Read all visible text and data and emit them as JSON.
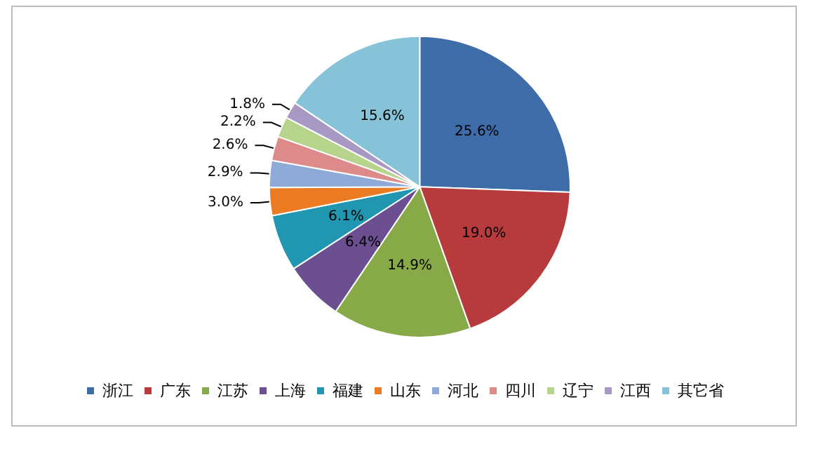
{
  "chart_data": {
    "type": "pie",
    "categories": [
      "浙江",
      "广东",
      "江苏",
      "上海",
      "福建",
      "山东",
      "河北",
      "四川",
      "辽宁",
      "江西",
      "其它省"
    ],
    "values": [
      25.6,
      19.0,
      14.9,
      6.4,
      6.1,
      3.0,
      2.9,
      2.6,
      2.2,
      1.8,
      15.6
    ],
    "value_labels": [
      "25.6%",
      "19.0%",
      "14.9%",
      "6.4%",
      "6.1%",
      "3.0%",
      "2.9%",
      "2.6%",
      "2.2%",
      "1.8%",
      "15.6%"
    ],
    "colors": [
      "#3d6ca9",
      "#b73b3d",
      "#88a948",
      "#6c4f90",
      "#2196b0",
      "#ea7b22",
      "#8eaad6",
      "#dc8b8a",
      "#b7d48c",
      "#a898c4",
      "#86c3d8"
    ],
    "legend": "bottom"
  }
}
